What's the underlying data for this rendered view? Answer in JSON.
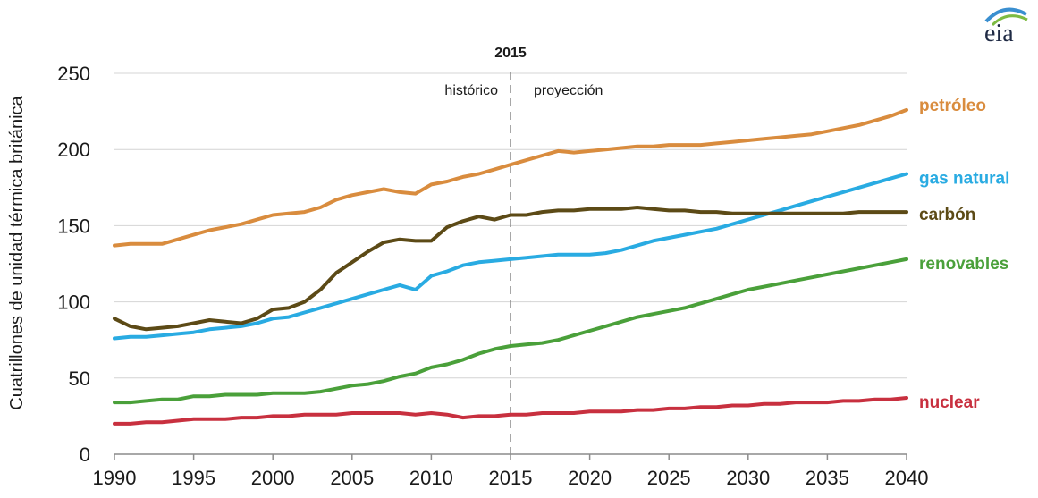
{
  "chart_data": {
    "type": "line",
    "title": "",
    "ylabel": "Cuatrillones de unidad térmica británica",
    "xlabel": "",
    "xlim": [
      1990,
      2040
    ],
    "ylim": [
      0,
      250
    ],
    "x_ticks": [
      "1990",
      "1995",
      "2000",
      "2005",
      "2010",
      "2015",
      "2020",
      "2025",
      "2030",
      "2035",
      "2040"
    ],
    "y_ticks": [
      "0",
      "50",
      "100",
      "150",
      "200",
      "250"
    ],
    "grid": "horizontal",
    "marker": {
      "year_label": "2015",
      "x": 2015,
      "left_label": "histórico",
      "right_label": "proyección"
    },
    "logo": "eia",
    "x": [
      1990,
      1991,
      1992,
      1993,
      1994,
      1995,
      1996,
      1997,
      1998,
      1999,
      2000,
      2001,
      2002,
      2003,
      2004,
      2005,
      2006,
      2007,
      2008,
      2009,
      2010,
      2011,
      2012,
      2013,
      2014,
      2015,
      2016,
      2017,
      2018,
      2019,
      2020,
      2021,
      2022,
      2023,
      2024,
      2025,
      2026,
      2027,
      2028,
      2029,
      2030,
      2031,
      2032,
      2033,
      2034,
      2035,
      2036,
      2037,
      2038,
      2039,
      2040
    ],
    "series": [
      {
        "name": "petróleo",
        "color": "#d98c3e",
        "values": [
          137,
          138,
          138,
          138,
          141,
          144,
          147,
          149,
          151,
          154,
          157,
          158,
          159,
          162,
          167,
          170,
          172,
          174,
          172,
          171,
          177,
          179,
          182,
          184,
          187,
          190,
          193,
          196,
          199,
          198,
          199,
          200,
          201,
          202,
          202,
          203,
          203,
          203,
          204,
          205,
          206,
          207,
          208,
          209,
          210,
          212,
          214,
          216,
          219,
          222,
          226
        ]
      },
      {
        "name": "gas natural",
        "color": "#29abe2",
        "values": [
          76,
          77,
          77,
          78,
          79,
          80,
          82,
          83,
          84,
          86,
          89,
          90,
          93,
          96,
          99,
          102,
          105,
          108,
          111,
          108,
          117,
          120,
          124,
          126,
          127,
          128,
          129,
          130,
          131,
          131,
          131,
          132,
          134,
          137,
          140,
          142,
          144,
          146,
          148,
          151,
          154,
          157,
          160,
          163,
          166,
          169,
          172,
          175,
          178,
          181,
          184
        ]
      },
      {
        "name": "carbón",
        "color": "#5c4a16",
        "values": [
          89,
          84,
          82,
          83,
          84,
          86,
          88,
          87,
          86,
          89,
          95,
          96,
          100,
          108,
          119,
          126,
          133,
          139,
          141,
          140,
          140,
          149,
          153,
          156,
          154,
          157,
          157,
          159,
          160,
          160,
          161,
          161,
          161,
          162,
          161,
          160,
          160,
          159,
          159,
          158,
          158,
          158,
          158,
          158,
          158,
          158,
          158,
          159,
          159,
          159,
          159
        ]
      },
      {
        "name": "renovables",
        "color": "#4aa03a",
        "values": [
          34,
          34,
          35,
          36,
          36,
          38,
          38,
          39,
          39,
          39,
          40,
          40,
          40,
          41,
          43,
          45,
          46,
          48,
          51,
          53,
          57,
          59,
          62,
          66,
          69,
          71,
          72,
          73,
          75,
          78,
          81,
          84,
          87,
          90,
          92,
          94,
          96,
          99,
          102,
          105,
          108,
          110,
          112,
          114,
          116,
          118,
          120,
          122,
          124,
          126,
          128
        ]
      },
      {
        "name": "nuclear",
        "color": "#c8303f",
        "values": [
          20,
          20,
          21,
          21,
          22,
          23,
          23,
          23,
          24,
          24,
          25,
          25,
          26,
          26,
          26,
          27,
          27,
          27,
          27,
          26,
          27,
          26,
          24,
          25,
          25,
          26,
          26,
          27,
          27,
          27,
          28,
          28,
          28,
          29,
          29,
          30,
          30,
          31,
          31,
          32,
          32,
          33,
          33,
          34,
          34,
          34,
          35,
          35,
          36,
          36,
          37
        ]
      }
    ]
  }
}
